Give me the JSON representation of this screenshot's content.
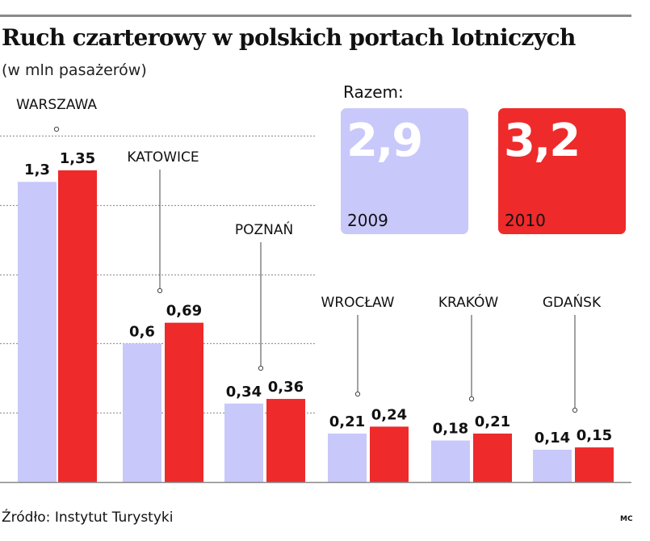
{
  "header": {
    "title": "Ruch czarterowy w polskich portach lotniczych",
    "subtitle": "(w mln pasażerów)"
  },
  "footer": {
    "source": "Źródło: Instytut Turystyki",
    "credit": "MC"
  },
  "colors": {
    "2009": "#c9c8fb",
    "2010": "#ee2a2a",
    "grid": "#9a9a9a",
    "axis": "#888888"
  },
  "chart_data": {
    "type": "bar",
    "title": "Ruch czarterowy w polskich portach lotniczych",
    "subtitle": "(w mln pasażerów)",
    "categories": [
      "WARSZAWA",
      "KATOWICE",
      "POZNAŃ",
      "WROCŁAW",
      "KRAKÓW",
      "GDAŃSK"
    ],
    "series": [
      {
        "name": "2009",
        "values": [
          1.3,
          0.6,
          0.34,
          0.21,
          0.18,
          0.14
        ],
        "labels": [
          "1,3",
          "0,6",
          "0,34",
          "0,21",
          "0,18",
          "0,14"
        ]
      },
      {
        "name": "2010",
        "values": [
          1.35,
          0.69,
          0.36,
          0.24,
          0.21,
          0.15
        ],
        "labels": [
          "1,35",
          "0,69",
          "0,36",
          "0,24",
          "0,21",
          "0,15"
        ]
      }
    ],
    "ylim": [
      0,
      1.5
    ],
    "grid": true,
    "totals": {
      "label": "Razem:",
      "items": [
        {
          "year": "2009",
          "value": 2.9,
          "text": "2,9"
        },
        {
          "year": "2010",
          "value": 3.2,
          "text": "3,2"
        }
      ]
    }
  }
}
